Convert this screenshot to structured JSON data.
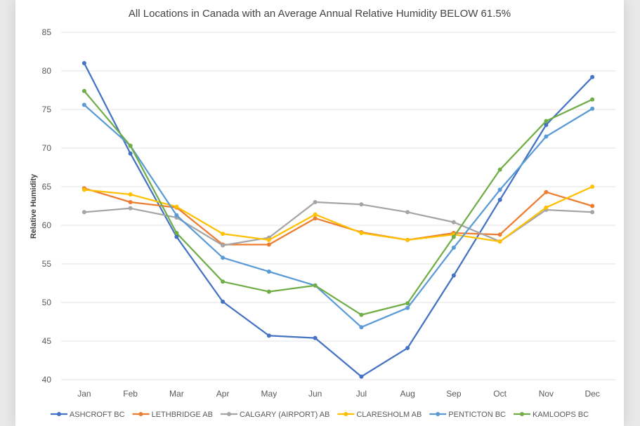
{
  "chart_data": {
    "type": "line",
    "title": "All Locations in Canada with an Average Annual Relative Humidity BELOW 61.5%",
    "xlabel": "",
    "ylabel": "Relative Humidity",
    "ylim": [
      40,
      85
    ],
    "yticks": [
      40,
      45,
      50,
      55,
      60,
      65,
      70,
      75,
      80,
      85
    ],
    "grid": true,
    "legend_position": "bottom",
    "categories": [
      "Jan",
      "Feb",
      "Mar",
      "Apr",
      "May",
      "Jun",
      "Jul",
      "Aug",
      "Sep",
      "Oct",
      "Nov",
      "Dec"
    ],
    "series": [
      {
        "name": "ASHCROFT BC",
        "color": "#4472c4",
        "values": [
          81.0,
          69.3,
          58.5,
          50.1,
          45.7,
          45.4,
          40.4,
          44.1,
          53.5,
          63.3,
          73.0,
          79.2
        ]
      },
      {
        "name": "LETHBRIDGE AB",
        "color": "#ed7d31",
        "values": [
          64.8,
          63.0,
          62.3,
          57.5,
          57.5,
          60.9,
          59.1,
          58.1,
          59.0,
          58.8,
          64.3,
          62.5
        ]
      },
      {
        "name": "CALGARY (AIRPORT) AB",
        "color": "#a5a5a5",
        "values": [
          61.7,
          62.2,
          61.0,
          57.4,
          58.4,
          63.0,
          62.7,
          61.7,
          60.4,
          57.9,
          62.0,
          61.7
        ]
      },
      {
        "name": "CLARESHOLM AB",
        "color": "#ffc000",
        "values": [
          64.6,
          64.0,
          62.4,
          58.9,
          58.1,
          61.4,
          59.0,
          58.1,
          58.8,
          57.9,
          62.3,
          65.0
        ]
      },
      {
        "name": "PENTICTON BC",
        "color": "#5b9bd5",
        "values": [
          75.6,
          70.3,
          61.3,
          55.8,
          54.0,
          52.2,
          46.8,
          49.3,
          57.1,
          64.6,
          71.5,
          75.1
        ]
      },
      {
        "name": "KAMLOOPS BC",
        "color": "#70ad47",
        "values": [
          77.4,
          70.3,
          59.0,
          52.7,
          51.4,
          52.2,
          48.4,
          49.9,
          58.5,
          67.2,
          73.5,
          76.3
        ]
      }
    ]
  }
}
